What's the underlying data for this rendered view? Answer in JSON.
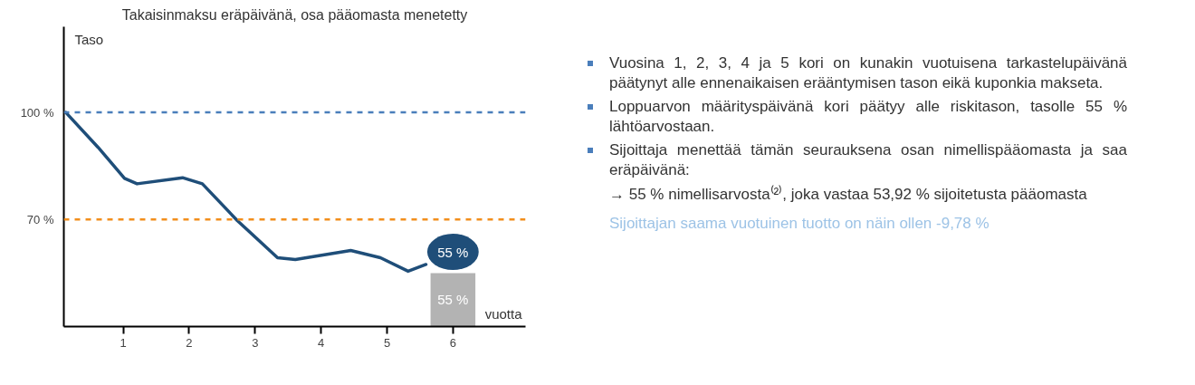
{
  "chart_data": {
    "type": "line",
    "title": "Takaisinmaksu eräpäivänä, osa pääomasta menetetty",
    "xlabel": "vuotta",
    "ylabel": "Taso",
    "xlim": [
      0.1,
      7.1
    ],
    "xticks": [
      1,
      2,
      3,
      4,
      5,
      6
    ],
    "ylim": [
      40,
      124
    ],
    "yticks": [
      {
        "value": 100,
        "label": "100 %"
      },
      {
        "value": 70,
        "label": "70 %"
      }
    ],
    "series": [
      {
        "color": "#1f4e79",
        "x": [
          0.13,
          0.62,
          1.02,
          1.21,
          1.9,
          2.2,
          2.73,
          3.34,
          3.61,
          4.45,
          4.9,
          5.32,
          5.59
        ],
        "values": [
          100,
          90.2,
          81.5,
          80,
          81.7,
          80,
          69.7,
          59.3,
          58.8,
          61.3,
          59.3,
          55.5,
          57.4
        ]
      },
      {
        "type": "bar",
        "color": "#b3b3b3",
        "x": [
          6
        ],
        "values": [
          55
        ],
        "value_labels": [
          "55 %"
        ]
      }
    ],
    "ref_lines": [
      {
        "axis": "y",
        "value": 100,
        "color": "#4a7ebb",
        "line_style": "dashed"
      },
      {
        "axis": "y",
        "value": 70,
        "color": "#f28e1c",
        "line_style": "dashed"
      }
    ],
    "annotations": [
      "55 %",
      "Vuosina 1, 2, 3, 4 ja 5 kori on kunakin vuotuisena tarkastelupäivänä päätynyt alle ennenaikaisen erääntymisen tason eikä kuponkia makseta.",
      "Loppuarvon määrityspäivänä kori päätyy alle riskitason, tasolle 55 % lähtöarvostaan.",
      "Sijoittaja menettää tämän seurauksena osan nimellispääomasta ja saa eräpäivänä:",
      "→ 55 % nimellisarvosta⁽²⁾, joka vastaa 53,92 % sijoitetusta pääomasta",
      "Sijoittajan saama vuotuinen tuotto on näin ollen -9,78 %"
    ],
    "grid": false
  }
}
